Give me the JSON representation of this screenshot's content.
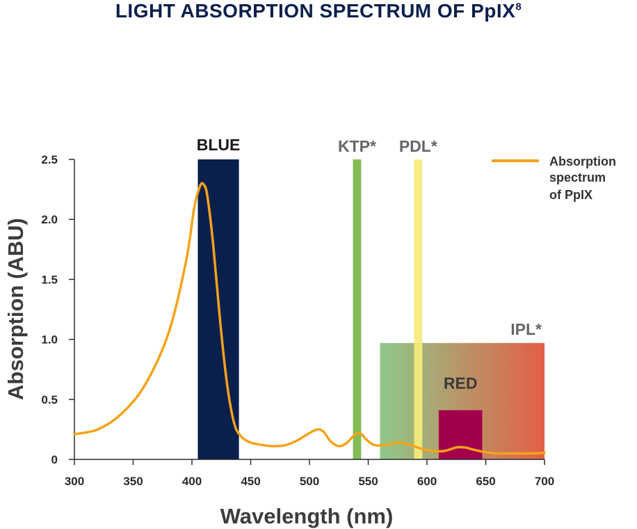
{
  "chart_data": {
    "type": "line",
    "title": "LIGHT ABSORPTION SPECTRUM OF PpIX",
    "title_superscript": "8",
    "xlabel": "Wavelength (nm)",
    "ylabel": "Absorption (ABU)",
    "xlim": [
      300,
      700
    ],
    "ylim": [
      0,
      2.5
    ],
    "x_ticks": [
      "300",
      "350",
      "400",
      "450",
      "500",
      "550",
      "600",
      "650",
      "700"
    ],
    "y_ticks": [
      "0",
      "0.5",
      "1.0",
      "1.5",
      "2.0",
      "2.5"
    ],
    "grid": false,
    "legend": {
      "position": "top-right",
      "label_lines": [
        "Absorption",
        "spectrum",
        "of PpIX"
      ]
    },
    "series": [
      {
        "name": "Absorption spectrum of PpIX",
        "color": "#f5a31a",
        "points": [
          [
            300,
            0.21
          ],
          [
            320,
            0.25
          ],
          [
            340,
            0.38
          ],
          [
            360,
            0.62
          ],
          [
            380,
            1.05
          ],
          [
            395,
            1.65
          ],
          [
            402,
            2.1
          ],
          [
            407,
            2.28
          ],
          [
            410,
            2.29
          ],
          [
            413,
            2.2
          ],
          [
            418,
            1.8
          ],
          [
            424,
            1.15
          ],
          [
            430,
            0.62
          ],
          [
            436,
            0.3
          ],
          [
            442,
            0.19
          ],
          [
            450,
            0.14
          ],
          [
            460,
            0.12
          ],
          [
            470,
            0.11
          ],
          [
            480,
            0.12
          ],
          [
            490,
            0.16
          ],
          [
            500,
            0.22
          ],
          [
            507,
            0.25
          ],
          [
            512,
            0.23
          ],
          [
            518,
            0.15
          ],
          [
            525,
            0.11
          ],
          [
            532,
            0.14
          ],
          [
            538,
            0.2
          ],
          [
            543,
            0.22
          ],
          [
            548,
            0.17
          ],
          [
            555,
            0.12
          ],
          [
            565,
            0.12
          ],
          [
            575,
            0.14
          ],
          [
            583,
            0.13
          ],
          [
            595,
            0.09
          ],
          [
            605,
            0.07
          ],
          [
            615,
            0.07
          ],
          [
            625,
            0.1
          ],
          [
            632,
            0.1
          ],
          [
            640,
            0.08
          ],
          [
            650,
            0.06
          ],
          [
            660,
            0.05
          ],
          [
            675,
            0.05
          ],
          [
            690,
            0.05
          ],
          [
            700,
            0.055
          ]
        ]
      }
    ],
    "bands": [
      {
        "label": "BLUE",
        "x_start": 405,
        "x_end": 440,
        "y_top": 2.5,
        "color": "#0b1f4d",
        "label_color": "#1a1a1a"
      },
      {
        "label": "KTP*",
        "x_start": 537,
        "x_end": 544,
        "y_top": 2.5,
        "color": "#7ab648",
        "label_color": "#666666"
      },
      {
        "label": "PDL*",
        "x_start": 589,
        "x_end": 596,
        "y_top": 2.5,
        "color": "#f5ec7a",
        "label_color": "#666666"
      },
      {
        "label": "IPL*",
        "x_start": 560,
        "x_end": 700,
        "y_top": 0.97,
        "color_start": "#8fc98a",
        "color_end": "#e35f47",
        "label_color": "#666666"
      },
      {
        "label": "RED",
        "x_start": 610,
        "x_end": 647,
        "y_top": 0.41,
        "color": "#a3004c",
        "label_color": "#3a3a3a"
      }
    ]
  }
}
